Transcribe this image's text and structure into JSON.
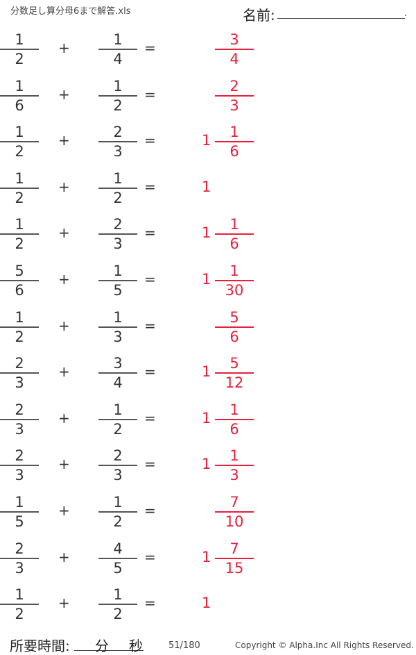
{
  "header": {
    "file_title": "分数足し算分母6まで解答.xls",
    "name_label": "名前:",
    "name_end": "."
  },
  "problems": [
    {
      "a": [
        "1",
        "2"
      ],
      "b": [
        "1",
        "4"
      ],
      "whole": "",
      "ans": [
        "3",
        "4"
      ]
    },
    {
      "a": [
        "1",
        "6"
      ],
      "b": [
        "1",
        "2"
      ],
      "whole": "",
      "ans": [
        "2",
        "3"
      ]
    },
    {
      "a": [
        "1",
        "2"
      ],
      "b": [
        "2",
        "3"
      ],
      "whole": "1",
      "ans": [
        "1",
        "6"
      ]
    },
    {
      "a": [
        "1",
        "2"
      ],
      "b": [
        "1",
        "2"
      ],
      "whole": "1",
      "ans": null
    },
    {
      "a": [
        "1",
        "2"
      ],
      "b": [
        "2",
        "3"
      ],
      "whole": "1",
      "ans": [
        "1",
        "6"
      ]
    },
    {
      "a": [
        "5",
        "6"
      ],
      "b": [
        "1",
        "5"
      ],
      "whole": "1",
      "ans": [
        "1",
        "30"
      ]
    },
    {
      "a": [
        "1",
        "2"
      ],
      "b": [
        "1",
        "3"
      ],
      "whole": "",
      "ans": [
        "5",
        "6"
      ]
    },
    {
      "a": [
        "2",
        "3"
      ],
      "b": [
        "3",
        "4"
      ],
      "whole": "1",
      "ans": [
        "5",
        "12"
      ]
    },
    {
      "a": [
        "2",
        "3"
      ],
      "b": [
        "1",
        "2"
      ],
      "whole": "1",
      "ans": [
        "1",
        "6"
      ]
    },
    {
      "a": [
        "2",
        "3"
      ],
      "b": [
        "2",
        "3"
      ],
      "whole": "1",
      "ans": [
        "1",
        "3"
      ]
    },
    {
      "a": [
        "1",
        "5"
      ],
      "b": [
        "1",
        "2"
      ],
      "whole": "",
      "ans": [
        "7",
        "10"
      ]
    },
    {
      "a": [
        "2",
        "3"
      ],
      "b": [
        "4",
        "5"
      ],
      "whole": "1",
      "ans": [
        "7",
        "15"
      ]
    },
    {
      "a": [
        "1",
        "2"
      ],
      "b": [
        "1",
        "2"
      ],
      "whole": "1",
      "ans": null
    }
  ],
  "symbols": {
    "plus": "+",
    "equals": "="
  },
  "footer": {
    "time_label": "所要時間:",
    "minutes": "分",
    "seconds": "秒",
    "page": "51/180",
    "copyright": "Copyright ©  Alpha.Inc All Rights Reserved."
  },
  "colors": {
    "answer": "#e8203c",
    "text": "#333333"
  }
}
